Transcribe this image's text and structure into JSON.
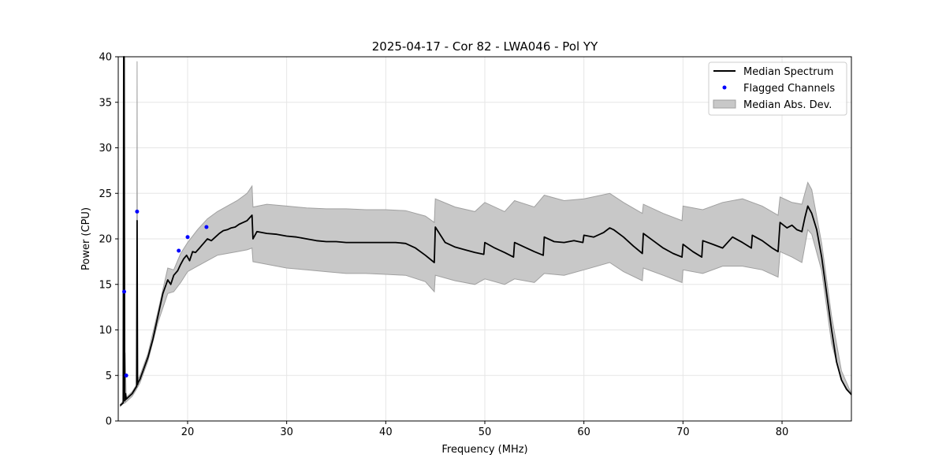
{
  "chart_data": {
    "type": "line",
    "title": "2025-04-17 - Cor 82 - LWA046 - Pol YY",
    "xlabel": "Frequency (MHz)",
    "ylabel": "Power (CPU)",
    "xlim": [
      13,
      87
    ],
    "ylim": [
      0,
      40
    ],
    "xticks": [
      "20",
      "30",
      "40",
      "50",
      "60",
      "70",
      "80"
    ],
    "yticks": [
      "0",
      "5",
      "10",
      "15",
      "20",
      "25",
      "30",
      "35",
      "40"
    ],
    "grid": true,
    "legend_position": "top-right",
    "legend": [
      "Median Spectrum",
      "Flagged Channels",
      "Median Abs. Dev."
    ],
    "colors": {
      "median": "#000000",
      "flagged": "#0000ff",
      "band": "#c8c8c8",
      "band_edge": "#a0a0a0"
    },
    "series": [
      {
        "name": "Median Spectrum",
        "x": [
          13.2,
          13.5,
          13.55,
          13.6,
          13.65,
          13.7,
          13.75,
          13.8,
          14.0,
          14.4,
          14.85,
          14.9,
          14.95,
          15.0,
          15.2,
          15.5,
          16.0,
          16.5,
          17.0,
          17.5,
          18.0,
          18.3,
          18.6,
          19.0,
          19.3,
          19.6,
          19.9,
          20.2,
          20.5,
          20.8,
          21.2,
          21.6,
          22.0,
          22.4,
          22.8,
          23.2,
          23.6,
          24.0,
          24.4,
          24.8,
          25.2,
          25.6,
          26.0,
          26.5,
          26.6,
          27.0,
          28.0,
          29.0,
          30.0,
          31.0,
          32.0,
          33.0,
          34.0,
          35.0,
          36.0,
          37.0,
          38.0,
          39.0,
          40.0,
          41.0,
          42.0,
          43.0,
          44.0,
          44.9,
          45.0,
          46.0,
          47.0,
          48.0,
          49.0,
          49.9,
          50.0,
          51.0,
          52.0,
          52.9,
          53.0,
          54.0,
          55.0,
          55.9,
          56.0,
          57.0,
          58.0,
          59.0,
          59.9,
          60.0,
          61.0,
          62.0,
          62.6,
          63.0,
          64.0,
          65.0,
          65.9,
          66.0,
          67.0,
          68.0,
          69.0,
          69.9,
          70.0,
          71.0,
          71.9,
          72.0,
          73.0,
          74.0,
          75.0,
          76.0,
          76.9,
          77.0,
          78.0,
          79.0,
          79.6,
          79.8,
          80.5,
          81.0,
          81.5,
          82.0,
          82.3,
          82.6,
          83.0,
          83.5,
          84.0,
          84.5,
          85.0,
          85.5,
          86.0,
          86.5,
          87.0
        ],
        "values": [
          1.7,
          2.0,
          40.0,
          40.0,
          2.2,
          2.3,
          3.0,
          2.4,
          2.6,
          3.0,
          3.8,
          22.0,
          4.0,
          4.2,
          4.6,
          5.5,
          7.0,
          9.0,
          11.5,
          14.0,
          15.5,
          15.0,
          16.0,
          16.5,
          17.2,
          17.8,
          18.2,
          17.6,
          18.6,
          18.5,
          19.0,
          19.5,
          20.0,
          19.8,
          20.2,
          20.6,
          20.9,
          21.0,
          21.2,
          21.3,
          21.6,
          21.8,
          22.0,
          22.6,
          20.0,
          20.8,
          20.6,
          20.5,
          20.3,
          20.2,
          20.0,
          19.8,
          19.7,
          19.7,
          19.6,
          19.6,
          19.6,
          19.6,
          19.6,
          19.6,
          19.5,
          19.0,
          18.2,
          17.4,
          21.3,
          19.6,
          19.1,
          18.8,
          18.5,
          18.3,
          19.6,
          19.0,
          18.5,
          18.0,
          19.6,
          19.1,
          18.6,
          18.2,
          20.2,
          19.7,
          19.6,
          19.8,
          19.6,
          20.4,
          20.2,
          20.7,
          21.2,
          21.0,
          20.2,
          19.2,
          18.4,
          20.6,
          19.8,
          19.0,
          18.4,
          18.0,
          19.4,
          18.6,
          18.0,
          19.8,
          19.4,
          19.0,
          20.2,
          19.6,
          19.0,
          20.4,
          19.8,
          19.0,
          18.6,
          21.8,
          21.2,
          21.5,
          21.0,
          20.8,
          22.3,
          23.6,
          22.8,
          21.0,
          18.0,
          14.0,
          10.0,
          6.5,
          4.5,
          3.5,
          2.9
        ]
      },
      {
        "name": "Flagged Channels",
        "x": [
          13.6,
          13.8,
          14.9,
          19.1,
          20.0,
          21.9
        ],
        "values": [
          14.2,
          5.0,
          23.0,
          18.7,
          20.2,
          21.3
        ]
      },
      {
        "name": "Median Abs. Dev.",
        "x": [
          13.2,
          13.5,
          13.7,
          13.8,
          14.0,
          14.4,
          14.85,
          14.9,
          14.95,
          15.2,
          16.0,
          17.0,
          18.0,
          18.6,
          19.3,
          20.0,
          21.0,
          22.0,
          23.0,
          24.0,
          25.0,
          26.0,
          26.5,
          26.6,
          28.0,
          30.0,
          32.0,
          34.0,
          36.0,
          38.0,
          40.0,
          42.0,
          44.0,
          44.9,
          45.0,
          47.0,
          49.0,
          50.0,
          52.0,
          53.0,
          55.0,
          56.0,
          58.0,
          60.0,
          62.6,
          64.0,
          65.9,
          66.0,
          68.0,
          69.9,
          70.0,
          72.0,
          74.0,
          76.0,
          78.0,
          79.6,
          79.8,
          81.0,
          82.0,
          82.6,
          83.0,
          84.0,
          85.0,
          86.0,
          87.0
        ],
        "upper": [
          1.8,
          2.2,
          7.5,
          2.6,
          2.8,
          3.2,
          4.0,
          39.5,
          4.5,
          5.0,
          7.4,
          12.0,
          16.8,
          16.6,
          18.4,
          19.6,
          21.0,
          22.2,
          23.0,
          23.6,
          24.2,
          25.0,
          25.8,
          23.5,
          23.8,
          23.6,
          23.4,
          23.3,
          23.3,
          23.2,
          23.2,
          23.1,
          22.5,
          21.8,
          24.4,
          23.5,
          23.0,
          24.0,
          23.0,
          24.2,
          23.5,
          24.8,
          24.2,
          24.4,
          25.0,
          24.0,
          22.8,
          23.8,
          22.8,
          22.0,
          23.6,
          23.2,
          24.0,
          24.4,
          23.6,
          22.6,
          24.6,
          24.0,
          23.8,
          26.2,
          25.4,
          19.5,
          11.5,
          5.5,
          3.0
        ],
        "lower": [
          1.6,
          1.9,
          2.0,
          2.1,
          2.3,
          2.7,
          3.5,
          5.0,
          3.7,
          4.2,
          6.6,
          10.8,
          14.0,
          14.2,
          15.2,
          16.4,
          17.0,
          17.6,
          18.2,
          18.4,
          18.6,
          18.8,
          19.0,
          17.5,
          17.2,
          16.8,
          16.6,
          16.4,
          16.2,
          16.2,
          16.1,
          16.0,
          15.3,
          14.2,
          16.0,
          15.4,
          15.0,
          15.6,
          15.0,
          15.6,
          15.2,
          16.2,
          16.0,
          16.6,
          17.4,
          16.4,
          15.4,
          16.8,
          16.0,
          15.2,
          16.6,
          16.2,
          17.0,
          17.0,
          16.6,
          15.8,
          18.6,
          18.0,
          17.4,
          21.0,
          20.5,
          16.5,
          8.5,
          4.5,
          2.8
        ]
      }
    ]
  }
}
